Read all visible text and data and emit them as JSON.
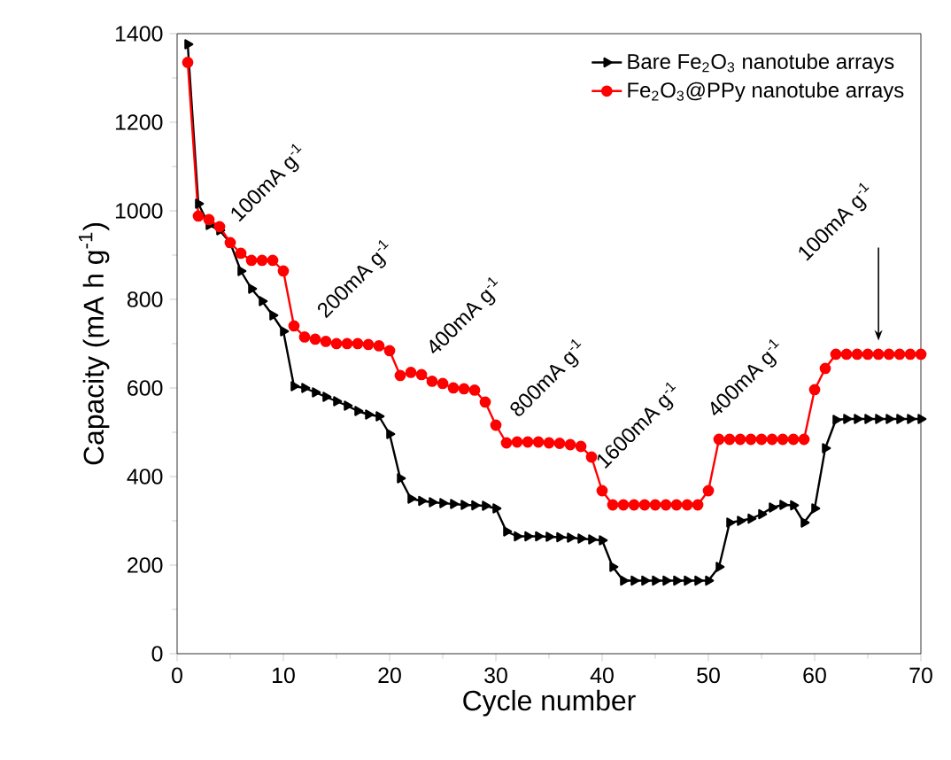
{
  "chart_data": {
    "type": "line",
    "xlabel": "Cycle number",
    "ylabel": "Capacity (mA h g$^{-1}$)",
    "x": [
      1,
      2,
      3,
      4,
      5,
      6,
      7,
      8,
      9,
      10,
      11,
      12,
      13,
      14,
      15,
      16,
      17,
      18,
      19,
      20,
      21,
      22,
      23,
      24,
      25,
      26,
      27,
      28,
      29,
      30,
      31,
      32,
      33,
      34,
      35,
      36,
      37,
      38,
      39,
      40,
      41,
      42,
      43,
      44,
      45,
      46,
      47,
      48,
      49,
      50,
      51,
      52,
      53,
      54,
      55,
      56,
      57,
      58,
      59,
      60,
      61,
      62,
      63,
      64,
      65,
      66,
      67,
      68,
      69,
      70
    ],
    "series": [
      {
        "name": "Bare Fe$_{2}$O$_{3}$ nanotube arrays",
        "color": "#000000",
        "marker": "triangle",
        "values": [
          1376,
          1016,
          968,
          956,
          928,
          864,
          824,
          796,
          764,
          728,
          604,
          600,
          590,
          580,
          570,
          560,
          548,
          540,
          536,
          496,
          396,
          350,
          345,
          342,
          340,
          338,
          336,
          335,
          334,
          328,
          276,
          265,
          265,
          265,
          264,
          263,
          262,
          260,
          258,
          256,
          196,
          165,
          165,
          165,
          165,
          165,
          165,
          165,
          165,
          165,
          196,
          296,
          300,
          305,
          315,
          330,
          336,
          335,
          296,
          328,
          464,
          528,
          530,
          530,
          530,
          530,
          530,
          530,
          530,
          530
        ]
      },
      {
        "name": "Fe$_{2}$O$_{3}$@PPy nanotube arrays",
        "color": "#ff0000",
        "marker": "circle",
        "values": [
          1335,
          988,
          980,
          964,
          928,
          904,
          888,
          888,
          888,
          864,
          740,
          715,
          710,
          705,
          700,
          700,
          700,
          698,
          695,
          684,
          628,
          635,
          630,
          615,
          610,
          600,
          598,
          595,
          568,
          516,
          476,
          478,
          478,
          478,
          476,
          475,
          472,
          468,
          444,
          368,
          336,
          336,
          336,
          336,
          336,
          336,
          336,
          336,
          336,
          368,
          484,
          484,
          484,
          484,
          484,
          484,
          484,
          484,
          484,
          596,
          644,
          676,
          676,
          676,
          676,
          676,
          676,
          676,
          676,
          676
        ]
      }
    ],
    "xlim": [
      0,
      70
    ],
    "xticks": [
      0,
      10,
      20,
      30,
      40,
      50,
      60,
      70
    ],
    "ylim": [
      0,
      1400
    ],
    "yticks": [
      0,
      200,
      400,
      600,
      800,
      1000,
      1200,
      1400
    ],
    "legend": "top right",
    "grid": false,
    "line_style": "solid",
    "annotations": [
      "100mA g$^{-1}$",
      "200mA g$^{-1}$",
      "400mA g$^{-1}$",
      "800mA g$^{-1}$",
      "1600mA g$^{-1}$",
      "400mA g$^{-1}$",
      "100mA g$^{-1}$"
    ]
  }
}
